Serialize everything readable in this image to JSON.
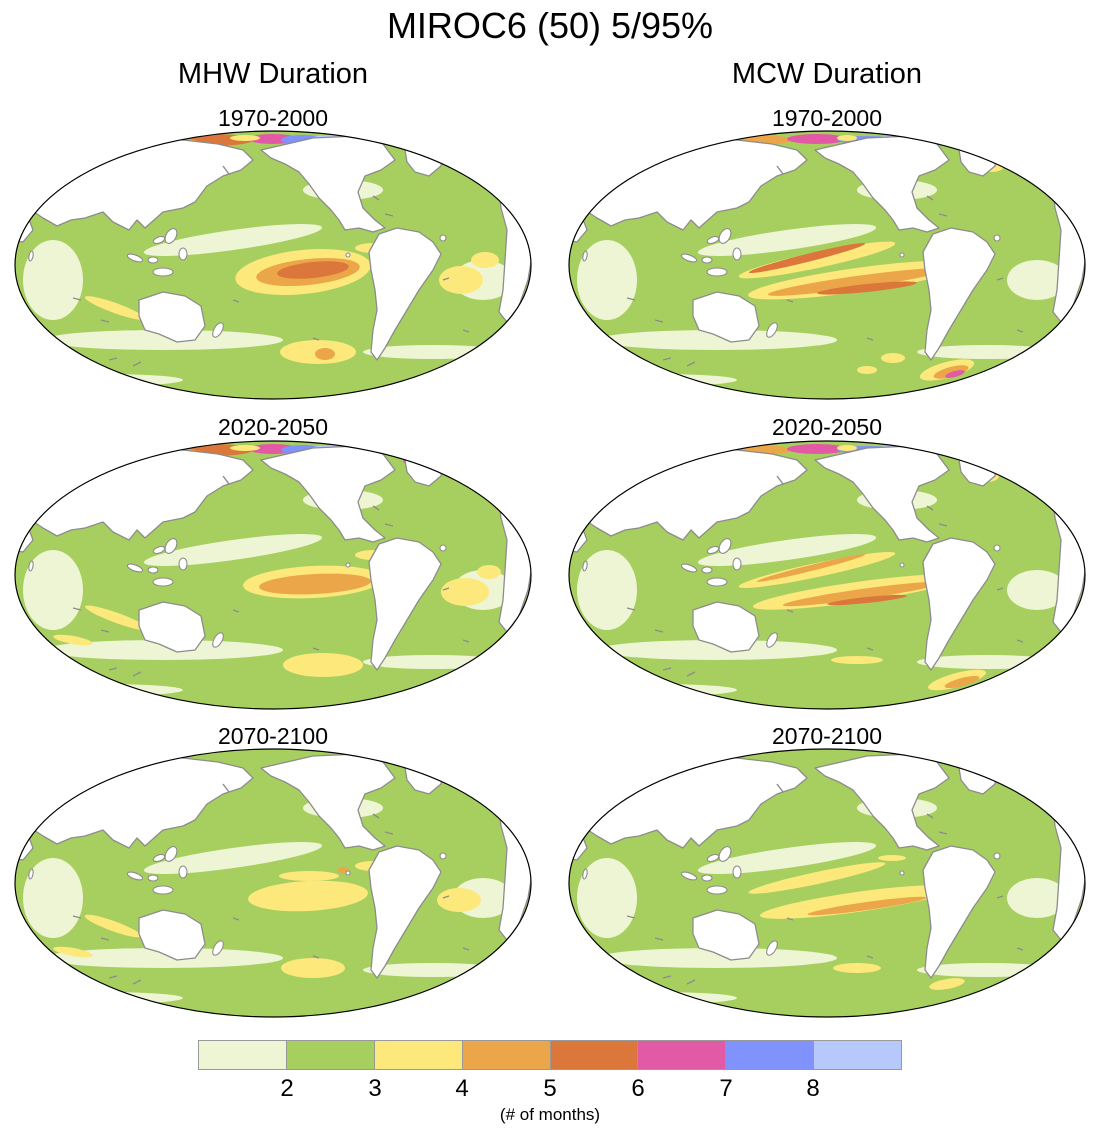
{
  "title": "MIROC6 (50) 5/95%",
  "columns": [
    {
      "title": "MHW Duration",
      "panels": [
        "1970-2000",
        "2020-2050",
        "2070-2100"
      ]
    },
    {
      "title": "MCW Duration",
      "panels": [
        "1970-2000",
        "2020-2050",
        "2070-2100"
      ]
    }
  ],
  "colorbar": {
    "colors": [
      "#eef5d4",
      "#a7cf60",
      "#fde87c",
      "#eba649",
      "#db773a",
      "#e25aa6",
      "#8092fb",
      "#b7c8fb"
    ],
    "ticks": [
      "2",
      "3",
      "4",
      "5",
      "6",
      "7",
      "8"
    ],
    "units": "(# of months)"
  },
  "map_style": {
    "land": "#ffffff",
    "coastline": "#8c8c8c",
    "border": "#000000"
  }
}
